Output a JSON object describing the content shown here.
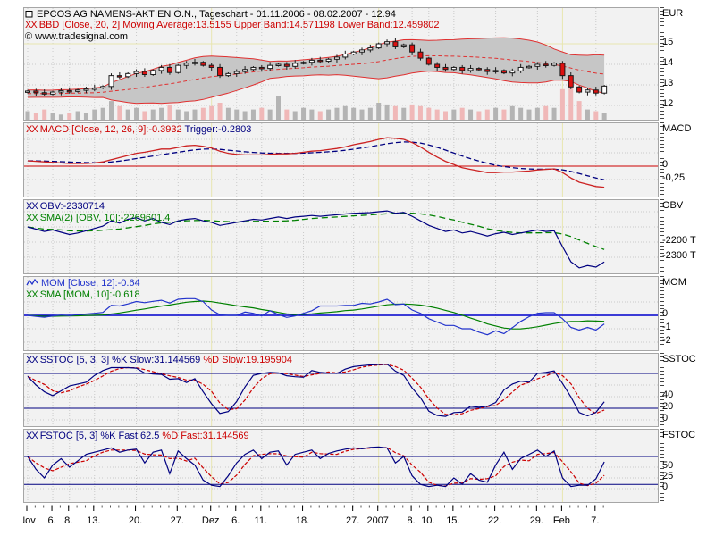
{
  "colors": {
    "red": "#cc0000",
    "navy": "#000080",
    "green": "#008000",
    "blue": "#2233cc",
    "black": "#000000",
    "band_line": "#e03030",
    "band_fill": "#c6c6c6",
    "candle_down": "#dd1111",
    "candle_up": "#ffffff",
    "candle_stroke": "#1a1a1a",
    "vol_up": "#b4b4b4",
    "vol_down": "#f0b8b8",
    "grid_dotted": "#c9c9c9",
    "month_line": "#e8e6b0",
    "panel_bg": "#f2f2f2",
    "panel_border": "#a6a6a6",
    "macd_zero": "#cc0000",
    "mom_zero": "#0000cc",
    "stoch_band": "#000080"
  },
  "header": {
    "title": "EPCOS AG NAMENS-AKTIEN O.N., Tageschart - 01.11.2006 - 08.02.2007 - 12.94",
    "watermark": "© www.tradesignal.com",
    "xx_glyph": "XX"
  },
  "panels": [
    {
      "id": "price",
      "axis_title": "EUR",
      "indicator_label": "BBD [Close, 20, 2] Moving Average:13.5155 Upper Band:14.571198 Lower Band:12.459802",
      "yticks": [
        {
          "v": 15,
          "label": "15"
        },
        {
          "v": 14,
          "label": "14"
        },
        {
          "v": 13,
          "label": "13"
        },
        {
          "v": 12,
          "label": "12"
        }
      ]
    },
    {
      "id": "macd",
      "axis_title": "MACD",
      "yticks": [
        {
          "v": 0,
          "label": "0"
        },
        {
          "v": -0.25,
          "label": "-0,25"
        }
      ],
      "legend": [
        [
          {
            "xx": "red"
          },
          {
            "text": "MACD [Close, 12, 26, 9]:-0.3932",
            "color": "red"
          },
          {
            "text": " Trigger:-0.2803",
            "color": "navy"
          }
        ]
      ]
    },
    {
      "id": "obv",
      "axis_title": "OBV",
      "yticks": [
        {
          "v": -2200,
          "label": "-2200 T"
        },
        {
          "v": -2300,
          "label": "-2300 T"
        }
      ],
      "legend": [
        [
          {
            "xx": "navy"
          },
          {
            "text": "OBV:-2330714",
            "color": "navy"
          }
        ],
        [
          {
            "xx": "green"
          },
          {
            "text": "SMA(2) [OBV, 10]:-2269601.4",
            "color": "green"
          }
        ]
      ]
    },
    {
      "id": "mom",
      "axis_title": "MOM",
      "yticks": [
        {
          "v": 0,
          "label": "0"
        },
        {
          "v": -1,
          "label": "-1"
        },
        {
          "v": -2,
          "label": "-2"
        }
      ],
      "legend": [
        [
          {
            "icon": "zigzag"
          },
          {
            "text": "MOM [Close, 12]:-0.64",
            "color": "blue"
          }
        ],
        [
          {
            "xx": "green"
          },
          {
            "text": "SMA [MOM, 10]:-0.618",
            "color": "green"
          }
        ]
      ]
    },
    {
      "id": "sstoc",
      "axis_title": "SSTOC",
      "yticks": [
        {
          "v": 40,
          "label": "40"
        },
        {
          "v": 20,
          "label": "20"
        },
        {
          "v": 0,
          "label": "0"
        }
      ],
      "legend": [
        [
          {
            "xx": "navy"
          },
          {
            "text": "SSTOC [5, 3, 3] %K Slow:31.144569",
            "color": "navy"
          },
          {
            "text": " %D Slow:19.195904",
            "color": "red"
          }
        ]
      ]
    },
    {
      "id": "fstoc",
      "axis_title": "FSTOC",
      "yticks": [
        {
          "v": 50,
          "label": "50"
        },
        {
          "v": 25,
          "label": "25"
        },
        {
          "v": 0,
          "label": "0"
        }
      ],
      "legend": [
        [
          {
            "xx": "navy"
          },
          {
            "text": "FSTOC [5, 3] %K Fast:62.5",
            "color": "navy"
          },
          {
            "text": " %D Fast:31.144569",
            "color": "red"
          }
        ]
      ]
    }
  ],
  "x_axis": {
    "labels": [
      {
        "text": "Nov",
        "i": 0
      },
      {
        "text": "6.",
        "i": 3
      },
      {
        "text": "8.",
        "i": 5
      },
      {
        "text": "13.",
        "i": 8
      },
      {
        "text": "20.",
        "i": 13
      },
      {
        "text": "27.",
        "i": 18
      },
      {
        "text": "Dez",
        "i": 22
      },
      {
        "text": "6.",
        "i": 25
      },
      {
        "text": "11.",
        "i": 28
      },
      {
        "text": "18.",
        "i": 33
      },
      {
        "text": "27.",
        "i": 39
      },
      {
        "text": "2007",
        "i": 42
      },
      {
        "text": "8.",
        "i": 46
      },
      {
        "text": "10.",
        "i": 48
      },
      {
        "text": "15.",
        "i": 51
      },
      {
        "text": "22.",
        "i": 56
      },
      {
        "text": "29.",
        "i": 61
      },
      {
        "text": "Feb",
        "i": 64
      },
      {
        "text": "7.",
        "i": 68
      }
    ],
    "month_indices": [
      22,
      42,
      64
    ]
  },
  "chart_data": [
    {
      "panel": "price",
      "type": "candlestick",
      "title": "EPCOS AG NAMENS-AKTIEN O.N., Tageschart",
      "date_span": "01.11.2006 - 08.02.2007",
      "last_close": 12.94,
      "ylabel": "EUR",
      "ylim": [
        11.7,
        15.7
      ],
      "overlay": {
        "name": "Bollinger Bands BBD [Close, 20, 2]",
        "moving_average": 13.5155,
        "upper_band": 14.571198,
        "lower_band": 12.459802
      },
      "closes": [
        12.7,
        12.62,
        12.55,
        12.65,
        12.72,
        12.68,
        12.75,
        12.8,
        12.85,
        12.92,
        13.45,
        13.4,
        13.55,
        13.65,
        13.5,
        13.7,
        13.85,
        13.6,
        13.95,
        14.05,
        14.1,
        13.95,
        13.85,
        13.45,
        13.55,
        13.65,
        13.75,
        13.85,
        13.8,
        13.95,
        14.0,
        13.9,
        14.05,
        14.1,
        14.2,
        14.15,
        14.25,
        14.35,
        14.5,
        14.6,
        14.7,
        14.8,
        15.0,
        15.1,
        14.85,
        14.95,
        14.6,
        14.3,
        14.0,
        13.85,
        13.75,
        13.85,
        13.7,
        13.8,
        13.75,
        13.65,
        13.7,
        13.58,
        13.68,
        13.85,
        13.9,
        14.0,
        13.95,
        14.05,
        13.45,
        12.9,
        12.65,
        12.75,
        12.6,
        12.94
      ],
      "volume_rel": [
        0.25,
        0.2,
        0.3,
        0.2,
        0.15,
        0.2,
        0.25,
        0.2,
        0.3,
        0.35,
        0.55,
        0.4,
        0.3,
        0.35,
        0.25,
        0.3,
        0.35,
        0.45,
        0.3,
        0.25,
        0.3,
        0.35,
        0.4,
        0.5,
        0.35,
        0.3,
        0.25,
        0.3,
        0.35,
        0.3,
        0.7,
        0.3,
        0.25,
        0.35,
        0.3,
        0.25,
        0.3,
        0.35,
        0.4,
        0.35,
        0.3,
        0.35,
        0.5,
        0.45,
        0.4,
        0.35,
        0.45,
        0.4,
        0.35,
        0.3,
        0.25,
        0.3,
        0.35,
        0.3,
        0.25,
        0.3,
        0.35,
        0.3,
        0.4,
        0.35,
        0.3,
        0.35,
        0.4,
        0.35,
        0.9,
        1.0,
        0.55,
        0.3,
        0.25,
        0.2
      ]
    },
    {
      "panel": "macd",
      "type": "line",
      "params": "[Close, 12, 26, 9]",
      "last": -0.3932,
      "trigger_last": -0.2803,
      "values": [
        0.1,
        0.09,
        0.08,
        0.07,
        0.06,
        0.05,
        0.05,
        0.05,
        0.06,
        0.08,
        0.12,
        0.16,
        0.2,
        0.24,
        0.26,
        0.29,
        0.32,
        0.32,
        0.35,
        0.38,
        0.39,
        0.37,
        0.34,
        0.28,
        0.24,
        0.22,
        0.21,
        0.21,
        0.21,
        0.22,
        0.23,
        0.23,
        0.24,
        0.26,
        0.28,
        0.29,
        0.31,
        0.33,
        0.36,
        0.4,
        0.43,
        0.46,
        0.5,
        0.53,
        0.52,
        0.5,
        0.44,
        0.36,
        0.26,
        0.17,
        0.09,
        0.03,
        -0.03,
        -0.06,
        -0.09,
        -0.12,
        -0.12,
        -0.11,
        -0.11,
        -0.1,
        -0.09,
        -0.07,
        -0.06,
        -0.05,
        -0.12,
        -0.22,
        -0.3,
        -0.34,
        -0.38,
        -0.3932
      ]
    },
    {
      "panel": "obv",
      "type": "line",
      "unit": "thousands",
      "last": -2330714,
      "sma10_last": -2269601.4,
      "values": [
        -2100,
        -2115,
        -2130,
        -2120,
        -2135,
        -2150,
        -2140,
        -2125,
        -2110,
        -2095,
        -2060,
        -2075,
        -2050,
        -2040,
        -2060,
        -2045,
        -2070,
        -2085,
        -2060,
        -2050,
        -2045,
        -2060,
        -2070,
        -2090,
        -2080,
        -2070,
        -2060,
        -2050,
        -2055,
        -2045,
        -2035,
        -2045,
        -2035,
        -2030,
        -2025,
        -2030,
        -2025,
        -2020,
        -2015,
        -2010,
        -2008,
        -2006,
        -2000,
        -1995,
        -2010,
        -2005,
        -2030,
        -2060,
        -2090,
        -2110,
        -2130,
        -2120,
        -2140,
        -2130,
        -2145,
        -2160,
        -2145,
        -2135,
        -2150,
        -2140,
        -2130,
        -2120,
        -2130,
        -2125,
        -2230,
        -2330,
        -2370,
        -2355,
        -2365,
        -2330.714
      ]
    },
    {
      "panel": "mom",
      "type": "line",
      "period": 12,
      "last": -0.64,
      "sma10_last": -0.618
    },
    {
      "panel": "sstoc",
      "type": "line",
      "k_slow_last": 31.144569,
      "d_slow_last": 19.195904
    },
    {
      "panel": "fstoc",
      "type": "line",
      "k_fast_last": 62.5,
      "d_fast_last": 31.144569,
      "k_fast": [
        75,
        45,
        25,
        55,
        70,
        50,
        65,
        80,
        85,
        90,
        95,
        85,
        90,
        92,
        60,
        85,
        90,
        35,
        88,
        70,
        55,
        20,
        8,
        5,
        30,
        60,
        80,
        90,
        70,
        85,
        88,
        55,
        80,
        85,
        90,
        70,
        82,
        88,
        92,
        95,
        93,
        96,
        97,
        95,
        60,
        75,
        30,
        10,
        5,
        8,
        5,
        25,
        10,
        35,
        20,
        15,
        55,
        85,
        45,
        70,
        80,
        90,
        75,
        88,
        25,
        5,
        8,
        8,
        23,
        62.5
      ]
    }
  ]
}
